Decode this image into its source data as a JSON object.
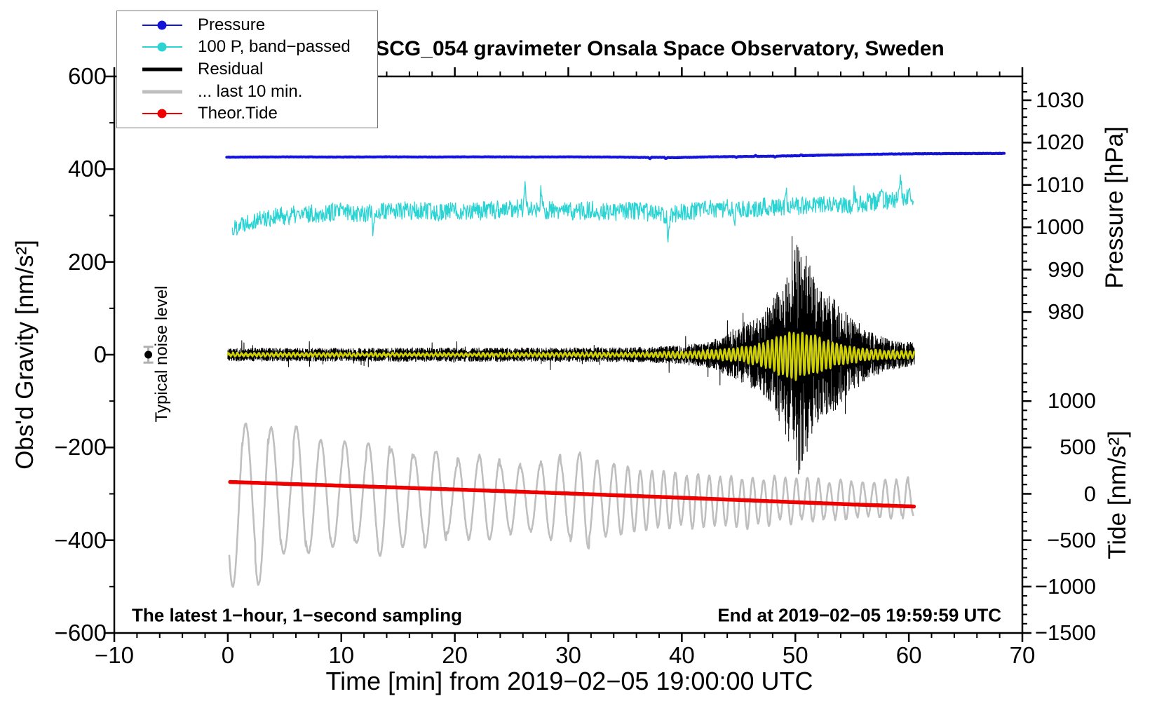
{
  "chart_data": {
    "type": "line",
    "title": "SCG_054 gravimeter Onsala Space Observatory, Sweden",
    "xlabel": "Time [min] from 2019−02−05 19:00:00 UTC",
    "x_axis": {
      "min": -10,
      "max": 70,
      "major_ticks": [
        -10,
        0,
        10,
        20,
        30,
        40,
        50,
        60,
        70
      ],
      "minor_step": 2
    },
    "left_axis": {
      "label": "Obs'd Gravity [nm/s²]",
      "min": -600,
      "max": 600,
      "major_ticks": [
        600,
        400,
        200,
        0,
        -200,
        -400,
        -600
      ],
      "minor_step": 100
    },
    "pressure_axis": {
      "label": "Pressure [hPa]",
      "major_ticks": [
        1030,
        1020,
        1010,
        1000,
        990,
        980
      ],
      "minor_step": 2,
      "minor_min": 970,
      "minor_max": 1034
    },
    "tide_axis": {
      "label": "Tide [nm/s²]",
      "major_ticks": [
        1000,
        500,
        0,
        -500,
        -1000,
        -1500
      ],
      "minor_step": 100,
      "minor_min": -1400,
      "minor_max": 1400
    },
    "annotations": {
      "sampling": "The latest 1−hour, 1−second sampling",
      "end": "End at 2019−02−05 19:59:59 UTC",
      "noise_label": "Typical noise level"
    },
    "noise_marker": {
      "x_min": -7,
      "value": 0,
      "error": 17
    },
    "grid": false,
    "legend_position": "top-left",
    "series": [
      {
        "id": "pressure",
        "name": "Pressure",
        "axis": "pressure",
        "color": "#1414d8",
        "width": 4,
        "kind": "anchors",
        "step": 0.05,
        "noise": 0.05,
        "seed": 11,
        "anchors": [
          [
            -0.1,
            1016.55
          ],
          [
            3,
            1016.6
          ],
          [
            6,
            1016.62
          ],
          [
            10,
            1016.58
          ],
          [
            14,
            1016.63
          ],
          [
            18,
            1016.6
          ],
          [
            22,
            1016.64
          ],
          [
            26,
            1016.6
          ],
          [
            30,
            1016.63
          ],
          [
            34,
            1016.58
          ],
          [
            36.5,
            1016.5
          ],
          [
            38,
            1016.52
          ],
          [
            39.5,
            1016.45
          ],
          [
            41,
            1016.55
          ],
          [
            43,
            1016.65
          ],
          [
            45,
            1016.7
          ],
          [
            47,
            1016.75
          ],
          [
            49,
            1016.85
          ],
          [
            51,
            1016.95
          ],
          [
            53,
            1017.05
          ],
          [
            55,
            1017.15
          ],
          [
            57,
            1017.25
          ],
          [
            59,
            1017.32
          ],
          [
            61,
            1017.38
          ],
          [
            64,
            1017.42
          ],
          [
            68.4,
            1017.45
          ]
        ],
        "spikes": [
          [
            37.2,
            -0.3
          ],
          [
            38.6,
            -0.25
          ],
          [
            44.8,
            -0.2
          ],
          [
            46.5,
            0.2
          ],
          [
            48.2,
            -0.25
          ],
          [
            50.5,
            0.2
          ]
        ]
      },
      {
        "id": "band_passed_pressure",
        "name": "100 P, band−passed",
        "axis": "gravity",
        "color": "#2bd3d3",
        "width": 1.3,
        "kind": "anchors",
        "step": 0.045,
        "noise": 20,
        "seed": 22,
        "anchors": [
          [
            0.4,
            268
          ],
          [
            1,
            282
          ],
          [
            2,
            290
          ],
          [
            4,
            297
          ],
          [
            6,
            301
          ],
          [
            8,
            305
          ],
          [
            10,
            309
          ],
          [
            12,
            305
          ],
          [
            14,
            309
          ],
          [
            16,
            311
          ],
          [
            18,
            307
          ],
          [
            20,
            311
          ],
          [
            22,
            309
          ],
          [
            24,
            313
          ],
          [
            26,
            316
          ],
          [
            28,
            311
          ],
          [
            30,
            309
          ],
          [
            32,
            311
          ],
          [
            34,
            307
          ],
          [
            36,
            311
          ],
          [
            38,
            303
          ],
          [
            39,
            301
          ],
          [
            40,
            309
          ],
          [
            42,
            313
          ],
          [
            44,
            315
          ],
          [
            46,
            317
          ],
          [
            48,
            319
          ],
          [
            50,
            321
          ],
          [
            52,
            323
          ],
          [
            54,
            319
          ],
          [
            56,
            327
          ],
          [
            58,
            333
          ],
          [
            60.4,
            341
          ]
        ],
        "spikes": [
          [
            12.8,
            -42
          ],
          [
            26.2,
            46
          ],
          [
            27.6,
            38
          ],
          [
            38.8,
            -66
          ],
          [
            44.6,
            -48
          ],
          [
            49.2,
            34
          ],
          [
            55.2,
            36
          ],
          [
            57.6,
            42
          ],
          [
            59.3,
            46
          ]
        ]
      },
      {
        "id": "residual",
        "name": "Residual",
        "axis": "gravity",
        "color": "#000000",
        "width": 1,
        "kind": "noise",
        "step": 0.016,
        "seed": 33,
        "envelope": [
          [
            0,
            14
          ],
          [
            10,
            14
          ],
          [
            20,
            15
          ],
          [
            30,
            15
          ],
          [
            36,
            16
          ],
          [
            40,
            20
          ],
          [
            42,
            26
          ],
          [
            43,
            34
          ],
          [
            44,
            46
          ],
          [
            45,
            56
          ],
          [
            46,
            70
          ],
          [
            47,
            88
          ],
          [
            48,
            120
          ],
          [
            49,
            170
          ],
          [
            49.8,
            225
          ],
          [
            50.3,
            255
          ],
          [
            50.8,
            225
          ],
          [
            51.5,
            185
          ],
          [
            52.5,
            150
          ],
          [
            53.5,
            120
          ],
          [
            54.5,
            95
          ],
          [
            55.5,
            72
          ],
          [
            56.5,
            52
          ],
          [
            57.5,
            40
          ],
          [
            58.5,
            32
          ],
          [
            59.5,
            28
          ],
          [
            60.5,
            26
          ]
        ],
        "forced": [
          [
            50.12,
            236
          ],
          [
            50.2,
            -150
          ],
          [
            50.28,
            -257
          ],
          [
            50.5,
            210
          ],
          [
            50.62,
            -228
          ]
        ]
      },
      {
        "id": "lowpass_residual",
        "name": "low-pass residual",
        "axis": "gravity",
        "color": "#cfcf05",
        "width": 2.6,
        "kind": "osc",
        "step": 0.02,
        "seed": 44,
        "noise": 1.5,
        "phase0": 0,
        "w_base": 0.85,
        "w_var": 0.3,
        "period": [
          [
            0,
            0.38
          ],
          [
            60.5,
            0.38
          ]
        ],
        "mean": [
          [
            0,
            0
          ],
          [
            60.5,
            0
          ]
        ],
        "envelope": [
          [
            0,
            3
          ],
          [
            20,
            3
          ],
          [
            36,
            4
          ],
          [
            40,
            6
          ],
          [
            43,
            9
          ],
          [
            45,
            13
          ],
          [
            47,
            22
          ],
          [
            48,
            32
          ],
          [
            49,
            45
          ],
          [
            50,
            52
          ],
          [
            50.8,
            48
          ],
          [
            51.5,
            40
          ],
          [
            52.5,
            30
          ],
          [
            54,
            20
          ],
          [
            55.5,
            14
          ],
          [
            57,
            10
          ],
          [
            58.5,
            8
          ],
          [
            60.5,
            7
          ]
        ]
      },
      {
        "id": "residual_last10",
        "name": "... last 10 min.",
        "axis": "tide",
        "color": "#bfbfbf",
        "width": 2.6,
        "kind": "osc",
        "step": 0.02,
        "seed": 55,
        "noise": 10,
        "phase0": 3.8,
        "w_base": 0.78,
        "w_var": 0.3,
        "period": [
          [
            0.13,
            2.3
          ],
          [
            10,
            2.1
          ],
          [
            20,
            1.9
          ],
          [
            30,
            1.7
          ],
          [
            33,
            1.5
          ],
          [
            36,
            1.05
          ],
          [
            45,
            0.95
          ],
          [
            60.4,
            1.0
          ]
        ],
        "mean": [
          [
            0.13,
            -40
          ],
          [
            10,
            -30
          ],
          [
            20,
            -45
          ],
          [
            30,
            -55
          ],
          [
            40,
            -70
          ],
          [
            50,
            -70
          ],
          [
            60.4,
            -55
          ]
        ],
        "envelope": [
          [
            0.13,
            1060
          ],
          [
            1.5,
            1000
          ],
          [
            3,
            890
          ],
          [
            5,
            760
          ],
          [
            8,
            620
          ],
          [
            11,
            560
          ],
          [
            14,
            600
          ],
          [
            17,
            520
          ],
          [
            20,
            470
          ],
          [
            23,
            420
          ],
          [
            26,
            390
          ],
          [
            29,
            460
          ],
          [
            32,
            510
          ],
          [
            34,
            470
          ],
          [
            36,
            330
          ],
          [
            38,
            295
          ],
          [
            40,
            275
          ],
          [
            42,
            300
          ],
          [
            44,
            275
          ],
          [
            46,
            295
          ],
          [
            48,
            255
          ],
          [
            50,
            235
          ],
          [
            52,
            225
          ],
          [
            54,
            205
          ],
          [
            56,
            195
          ],
          [
            58,
            205
          ],
          [
            60.4,
            225
          ]
        ]
      },
      {
        "id": "theor_tide",
        "name": "Theor.Tide",
        "axis": "tide",
        "color": "#ee0000",
        "width": 5.5,
        "kind": "anchors",
        "step": 0.25,
        "noise": 0,
        "seed": 66,
        "anchors": [
          [
            0.2,
            128
          ],
          [
            5,
            108
          ],
          [
            10,
            88
          ],
          [
            15,
            68
          ],
          [
            20,
            47
          ],
          [
            25,
            26
          ],
          [
            30,
            4
          ],
          [
            35,
            -19
          ],
          [
            40,
            -42
          ],
          [
            45,
            -66
          ],
          [
            50,
            -90
          ],
          [
            55,
            -114
          ],
          [
            60.55,
            -137
          ]
        ],
        "spikes": []
      }
    ]
  },
  "legend": {
    "items": [
      {
        "label": "Pressure",
        "color": "#1414d8",
        "line_width": 2,
        "dot": true
      },
      {
        "label": "100 P, band−passed",
        "color": "#2bd3d3",
        "line_width": 2,
        "dot": true
      },
      {
        "label": "Residual",
        "color": "#000000",
        "line_width": 5,
        "dot": false
      },
      {
        "label": "... last 10 min.",
        "color": "#bfbfbf",
        "line_width": 5,
        "dot": false
      },
      {
        "label": "Theor.Tide",
        "color": "#ee0000",
        "line_width": 2,
        "dot": true
      }
    ]
  },
  "colors": {
    "frame": "#000000",
    "background": "#ffffff",
    "noise_marker_dot": "#000000",
    "noise_marker_bar": "#b0b0b0"
  }
}
